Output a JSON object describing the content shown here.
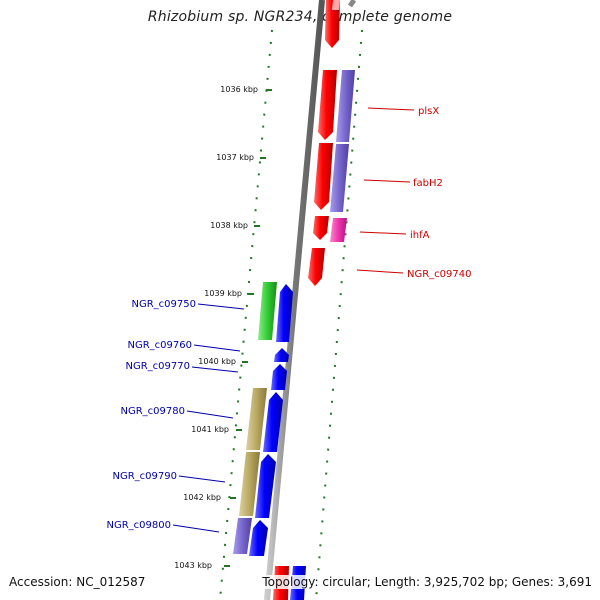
{
  "title": "Rhizobium sp. NGR234, complete genome",
  "footer": {
    "accession": "Accession: NC_012587",
    "topology": "Topology: circular; Length: 3,925,702 bp; Genes: 3,691"
  },
  "ticks": [
    "1036 kbp",
    "1037 kbp",
    "1038 kbp",
    "1039 kbp",
    "1040 kbp",
    "1041 kbp",
    "1042 kbp",
    "1043 kbp"
  ],
  "genes_right": [
    {
      "label": "plsX",
      "color": "#cc0000"
    },
    {
      "label": "fabH2",
      "color": "#cc0000"
    },
    {
      "label": "ihfA",
      "color": "#cc0000"
    },
    {
      "label": "NGR_c09740",
      "color": "#cc0000"
    }
  ],
  "genes_left": [
    {
      "label": "NGR_c09750",
      "color": "#0000aa"
    },
    {
      "label": "NGR_c09760",
      "color": "#0000aa"
    },
    {
      "label": "NGR_c09770",
      "color": "#0000aa"
    },
    {
      "label": "NGR_c09780",
      "color": "#0000aa"
    },
    {
      "label": "NGR_c09790",
      "color": "#0000aa"
    },
    {
      "label": "NGR_c09800",
      "color": "#0000aa"
    }
  ],
  "colors": {
    "forward_gene": "#ff0000",
    "reverse_gene": "#0000ff",
    "cog_purple": "#7766cc",
    "cog_magenta": "#ee33aa",
    "cog_green": "#33cc33",
    "cog_khaki": "#b8a860",
    "backbone": "#888888",
    "gc_dots": "#227722"
  }
}
